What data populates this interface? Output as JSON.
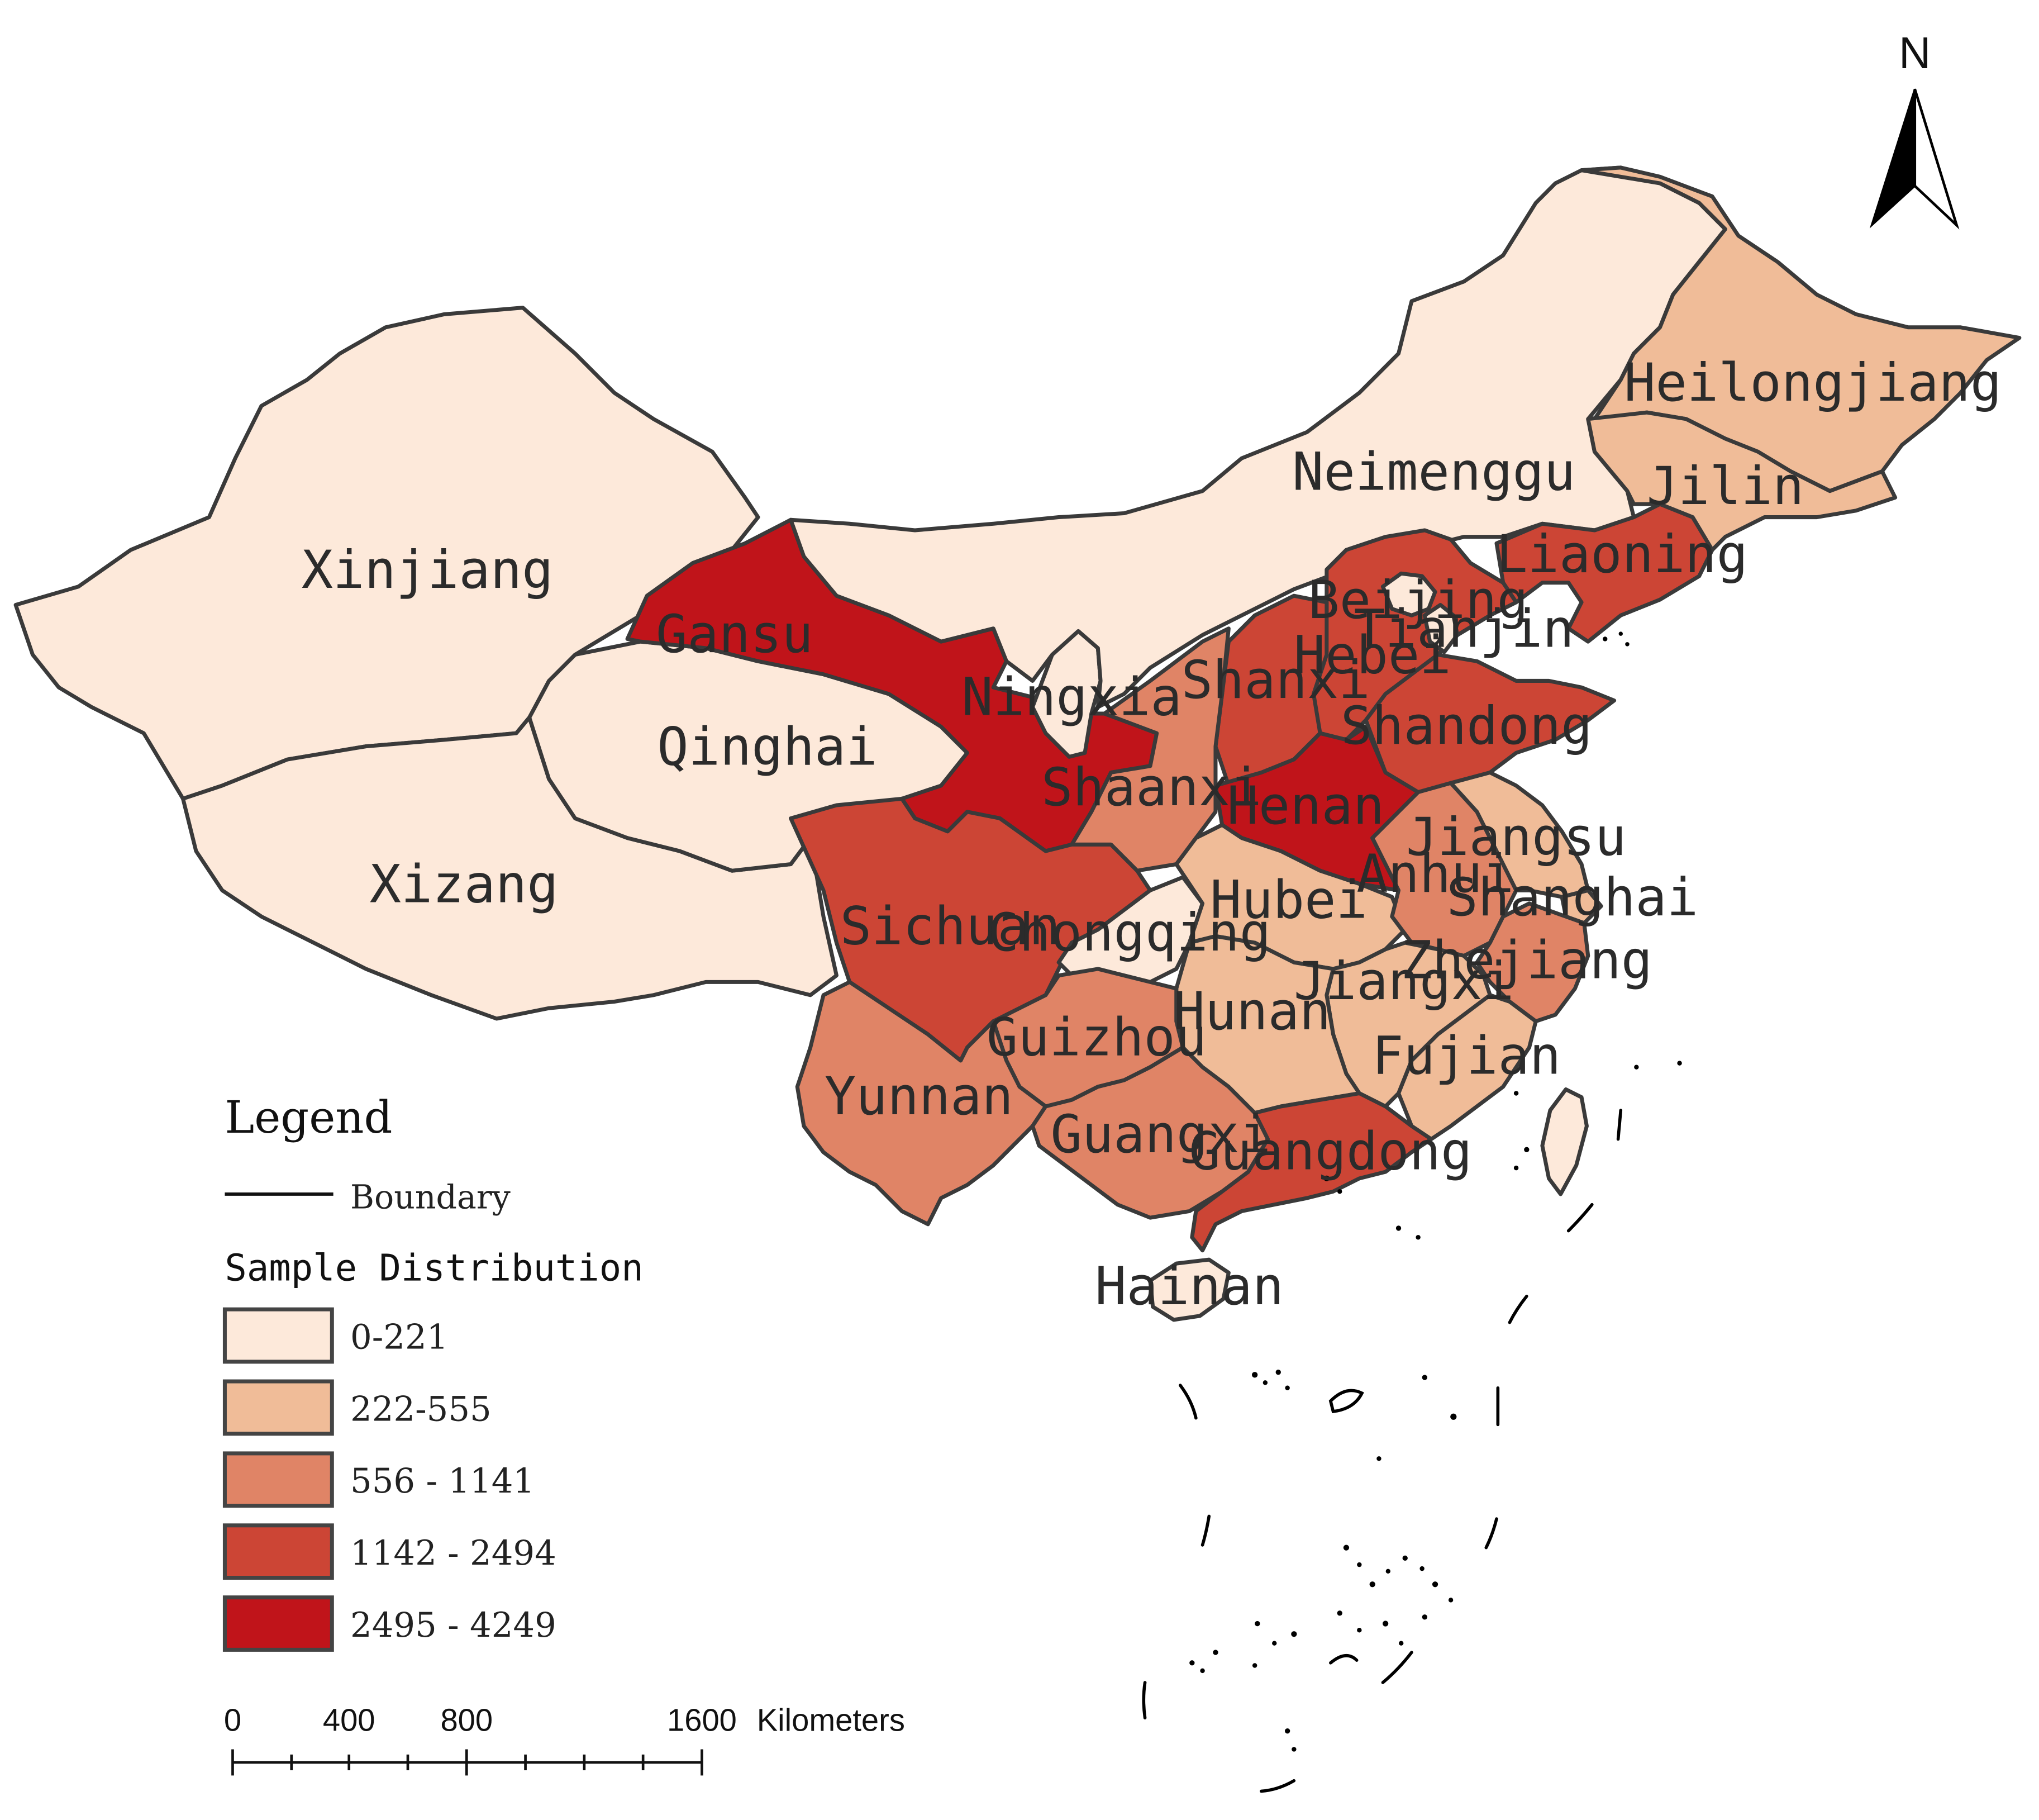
{
  "legend": {
    "title": "Legend",
    "boundary_label": "Boundary",
    "distribution_title": "Sample Distribution",
    "classes": [
      {
        "label": "0-221",
        "color": "#fde9da"
      },
      {
        "label": "222-555",
        "color": "#f0bc98"
      },
      {
        "label": "556 - 1141",
        "color": "#e08466"
      },
      {
        "label": "1142 - 2494",
        "color": "#cc4535"
      },
      {
        "label": "2495 - 4249",
        "color": "#c0141a"
      }
    ]
  },
  "scale_bar": {
    "tick_labels": [
      "0",
      "400",
      "800",
      "1600"
    ],
    "unit": "Kilometers"
  },
  "north_arrow": {
    "label": "N"
  },
  "provinces": [
    {
      "name": "Xinjiang",
      "class": 0
    },
    {
      "name": "Xizang",
      "class": 0
    },
    {
      "name": "Qinghai",
      "class": 0
    },
    {
      "name": "Gansu",
      "class": 4
    },
    {
      "name": "Ningxia",
      "class": 0
    },
    {
      "name": "Neimenggu",
      "class": 0
    },
    {
      "name": "Heilongjiang",
      "class": 1
    },
    {
      "name": "Jilin",
      "class": 1
    },
    {
      "name": "Liaoning",
      "class": 3
    },
    {
      "name": "Beijing",
      "class": 0
    },
    {
      "name": "Tianjin",
      "class": 0
    },
    {
      "name": "Hebei",
      "class": 3
    },
    {
      "name": "Shanxi",
      "class": 3
    },
    {
      "name": "Shandong",
      "class": 3
    },
    {
      "name": "Henan",
      "class": 4
    },
    {
      "name": "Shaanxi",
      "class": 2
    },
    {
      "name": "Sichuan",
      "class": 3
    },
    {
      "name": "Chongqing",
      "class": 0
    },
    {
      "name": "Hubei",
      "class": 1
    },
    {
      "name": "Anhui",
      "class": 2
    },
    {
      "name": "Jiangsu",
      "class": 1
    },
    {
      "name": "Shanghai",
      "class": 1
    },
    {
      "name": "Zhejiang",
      "class": 2
    },
    {
      "name": "Jiangxi",
      "class": 1
    },
    {
      "name": "Hunan",
      "class": 1
    },
    {
      "name": "Guizhou",
      "class": 2
    },
    {
      "name": "Yunnan",
      "class": 2
    },
    {
      "name": "Guangxi",
      "class": 2
    },
    {
      "name": "Guangdong",
      "class": 3
    },
    {
      "name": "Fujian",
      "class": 1
    },
    {
      "name": "Hainan",
      "class": 0
    },
    {
      "name": "Taiwan",
      "class": 0
    }
  ]
}
